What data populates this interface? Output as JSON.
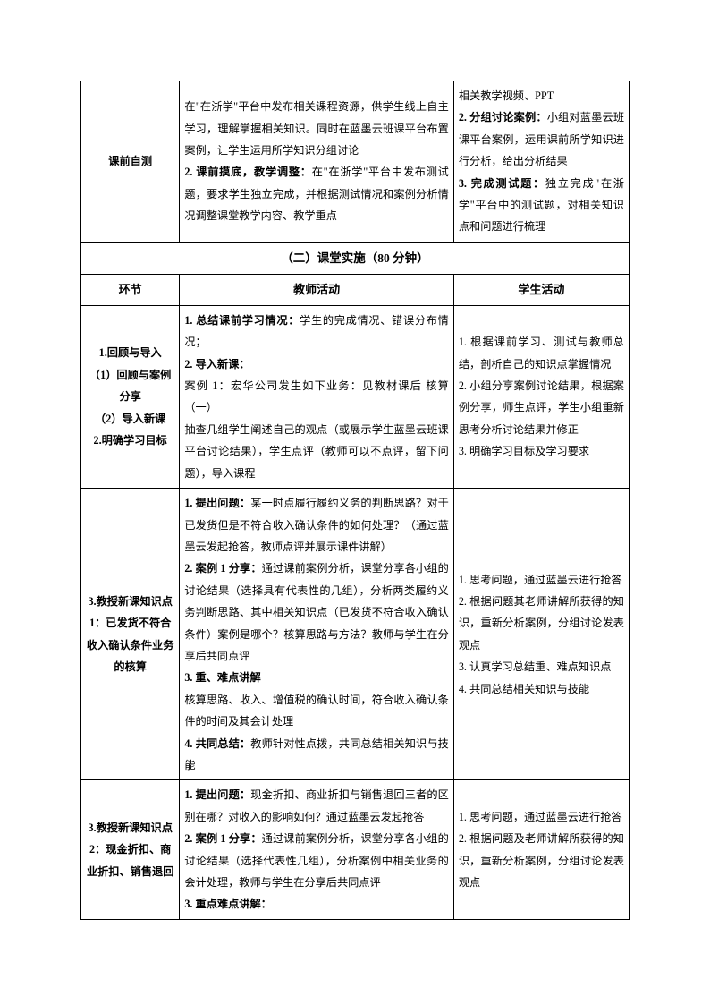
{
  "row1": {
    "label": "课前自测",
    "teacher": "在\"在浙学\"平台中发布相关课程资源，供学生线上自主学习，理解掌握相关知识。同时在蓝墨云班课平台布置案例，让学生运用所学知识分组讨论\n<b>2. 课前摸底，教学调整：</b>在\"在浙学\"平台中发布测试题，要求学生独立完成，并根据测试情况和案例分析情况调整课堂教学内容、教学重点",
    "student": "相关教学视频、PPT\n<b>2. 分组讨论案例：</b>小组对蓝墨云班课平台案例，运用课前所学知识进行分析，给出分析结果\n<b>3. 完成测试题：</b>独立完成\"在浙学\"平台中的测试题，对相关知识点和问题进行梳理"
  },
  "section_header": "（二）课堂实施（80 分钟）",
  "col_headers": {
    "c1": "环节",
    "c2": "教师活动",
    "c3": "学生活动"
  },
  "row2": {
    "label": "1.回顾与导入\n（1）回顾与案例分享\n（2）导入新课\n2.明确学习目标",
    "teacher": "<b>1. 总结课前学习情况：</b>学生的完成情况、错误分布情况；\n<b>2. 导入新课：</b>\n案例 1：宏华公司发生如下业务：见教材课后 核算（一）\n抽查几组学生阐述自己的观点（或展示学生蓝墨云班课平台讨论结果），学生点评（教师可以不点评，留下问题），导入课程",
    "student": "1. 根据课前学习、测试与教师总结，剖析自己的知识点掌握情况\n2. 小组分享案例讨论结果，根据案例分享，师生点评，学生小组重新思考分析讨论结果并修正\n3. 明确学习目标及学习要求"
  },
  "row3": {
    "label": "3.教授新课知识点 1：已发货不符合收入确认条件业务的核算",
    "teacher": "<b>1. 提出问题：</b>某一时点履行履约义务的判断思路？对于已发货但是不符合收入确认条件的如何处理？（通过蓝墨云发起抢答，教师点评并展示课件讲解）\n<b>2. 案例 1 分享：</b>通过课前案例分析，课堂分享各小组的讨论结果（选择具有代表性的几组），分析两类履约义务判断思路、其中相关知识点（已发货不符合收入确认条件）案例是哪个？核算思路与方法？教师与学生在分享后共同点评\n<b>3. 重、难点讲解</b>\n核算思路、收入、增值税的确认时间，符合收入确认条件的时间及其会计处理\n<b>4. 共同总结：</b>教师针对性点拨，共同总结相关知识与技能",
    "student": "1. 思考问题，通过蓝墨云进行抢答\n2. 根据问题其老师讲解所获得的知识，重新分析案例，分组讨论发表观点\n3. 认真学习总结重、难点知识点\n4. 共同总结相关知识与技能"
  },
  "row4": {
    "label": "3.教授新课知识点 2：现金折扣、商业折扣、销售退回",
    "teacher": "<b>1. 提出问题：</b>现金折扣、商业折扣与销售退回三者的区别在哪？对收入的影响如何？通过蓝墨云发起抢答\n<b>2. 案例 1 分享：</b>通过课前案例分析，课堂分享各小组的讨论结果（选择代表性几组），分析案例中相关业务的会计处理，教师与学生在分享后共同点评\n<b>3. 重点难点讲解：</b>",
    "student": "1. 思考问题，通过蓝墨云进行抢答\n2. 根据问题及老师讲解所获得的知识，重新分析案例，分组讨论发表观点"
  }
}
